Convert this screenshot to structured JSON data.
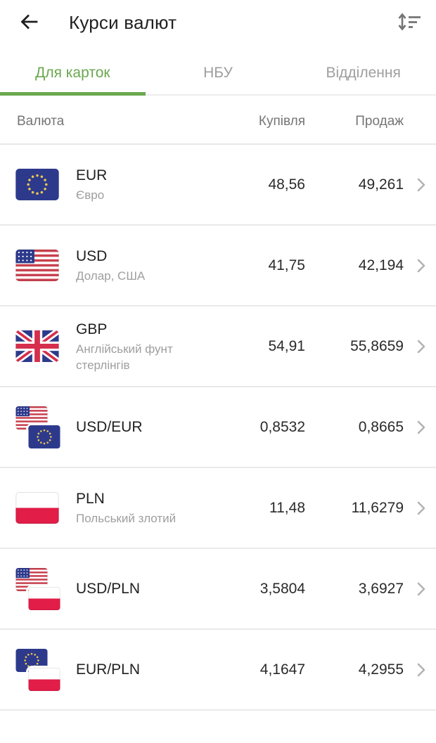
{
  "app_bar": {
    "title": "Курси валют",
    "back_icon": "arrow-left",
    "sort_icon": "sort-order"
  },
  "tabs": [
    {
      "label": "Для карток",
      "active": true
    },
    {
      "label": "НБУ",
      "active": false
    },
    {
      "label": "Відділення",
      "active": false
    }
  ],
  "table": {
    "headers": {
      "currency": "Валюта",
      "buy": "Купівля",
      "sell": "Продаж"
    },
    "rows": [
      {
        "code": "EUR",
        "name": "Євро",
        "buy": "48,56",
        "sell": "49,261",
        "flag": "eu"
      },
      {
        "code": "USD",
        "name": "Долар, США",
        "buy": "41,75",
        "sell": "42,194",
        "flag": "us"
      },
      {
        "code": "GBP",
        "name": "Англійський фунт стерлінгів",
        "buy": "54,91",
        "sell": "55,8659",
        "flag": "gb"
      },
      {
        "code": "USD/EUR",
        "name": "",
        "buy": "0,8532",
        "sell": "0,8665",
        "flag": "us+eu"
      },
      {
        "code": "PLN",
        "name": "Польський злотий",
        "buy": "11,48",
        "sell": "11,6279",
        "flag": "pl"
      },
      {
        "code": "USD/PLN",
        "name": "",
        "buy": "3,5804",
        "sell": "3,6927",
        "flag": "us+pl"
      },
      {
        "code": "EUR/PLN",
        "name": "",
        "buy": "4,1647",
        "sell": "4,2955",
        "flag": "eu+pl"
      }
    ]
  },
  "colors": {
    "accent_green": "#6aa84f",
    "inactive_tab": "#9e9e9e",
    "header_text": "#757575",
    "primary_text": "#212121",
    "secondary_text": "#9e9e9e",
    "divider": "#e7e7e7",
    "chevron": "#b3b3b3",
    "flag_blue": "#2d3a8c",
    "flag_red_us": "#c8414f",
    "flag_red_pl": "#e11d48",
    "flag_red_gb": "#d62e4d",
    "flag_star_yellow": "#f2c94c"
  }
}
